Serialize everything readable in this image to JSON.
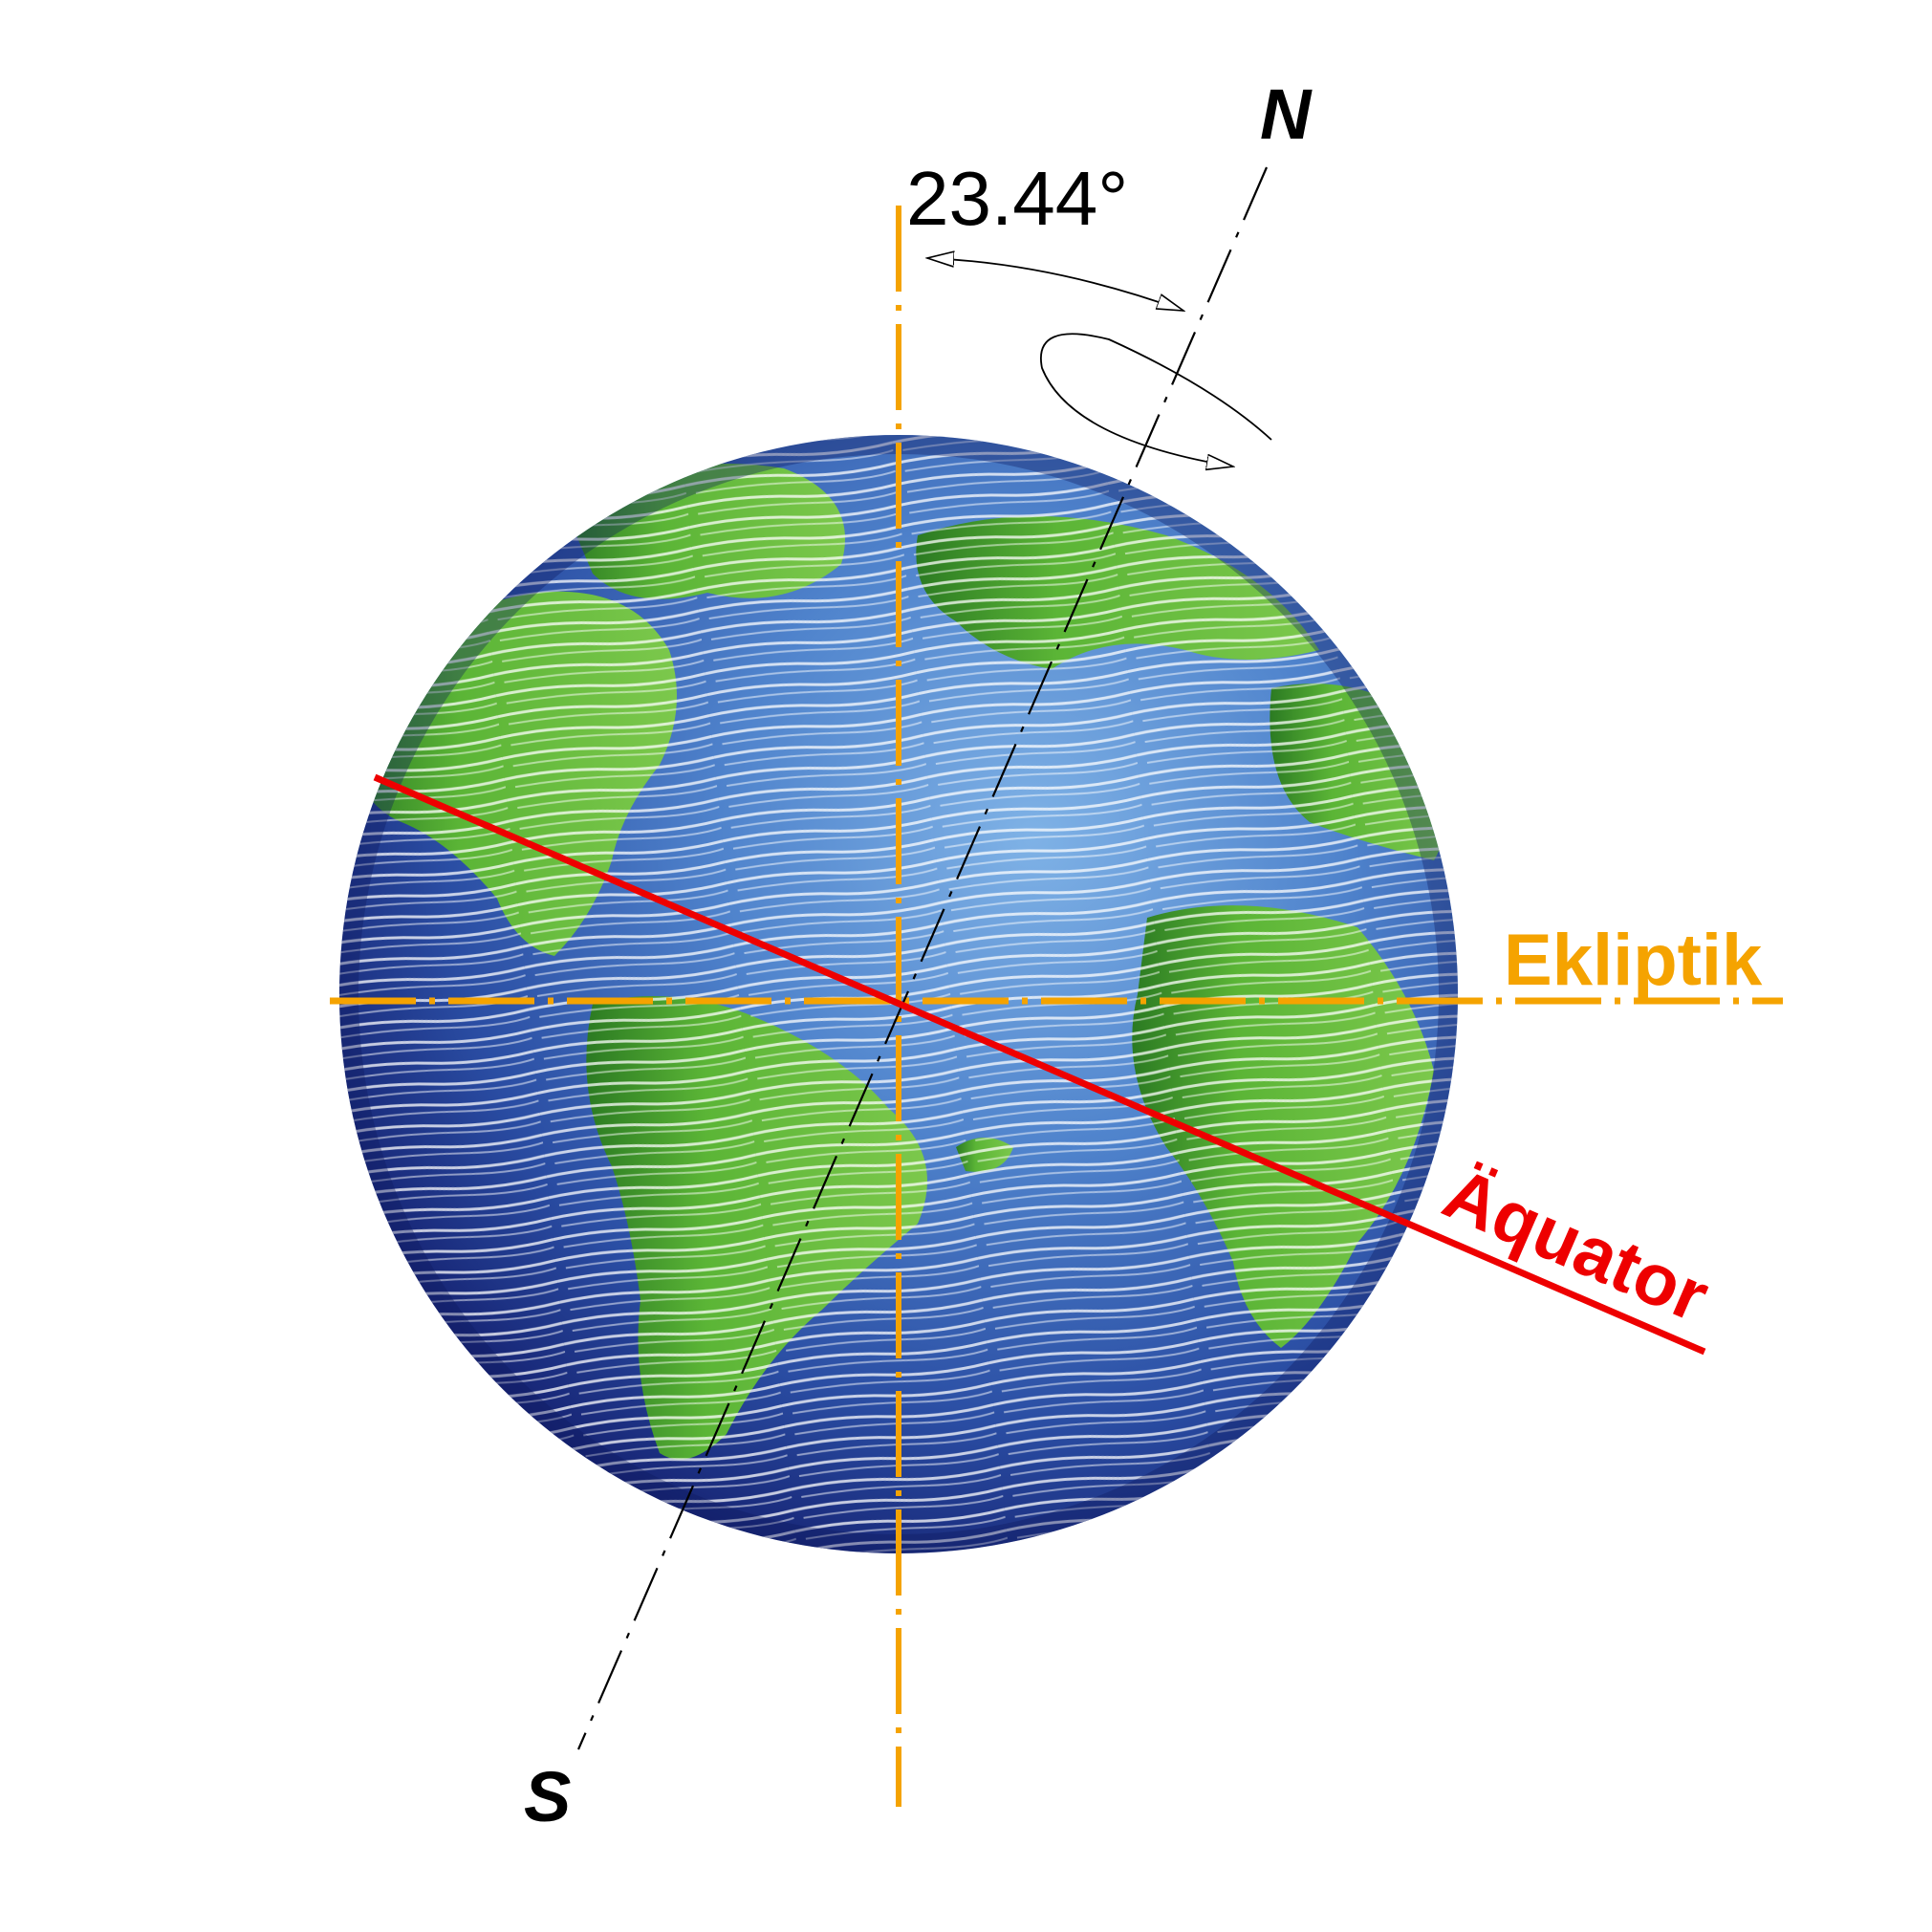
{
  "labels": {
    "angle": "23.44°",
    "north": "N",
    "south": "S",
    "ecliptic": "Ekliptik",
    "equator": "Äquator"
  },
  "colors": {
    "ocean_light": "#6fa3da",
    "ocean_mid": "#3d6fbf",
    "ocean_dark": "#17277a",
    "land": "#6cbf3e",
    "land_dark": "#2f7a26",
    "ecliptic": "#f5a300",
    "equator": "#ee0000",
    "axis": "#000000"
  },
  "axial_tilt_degrees": 23.44,
  "icons": {
    "rotation": "rotation-arrow-icon",
    "angle": "angle-arc-icon"
  }
}
